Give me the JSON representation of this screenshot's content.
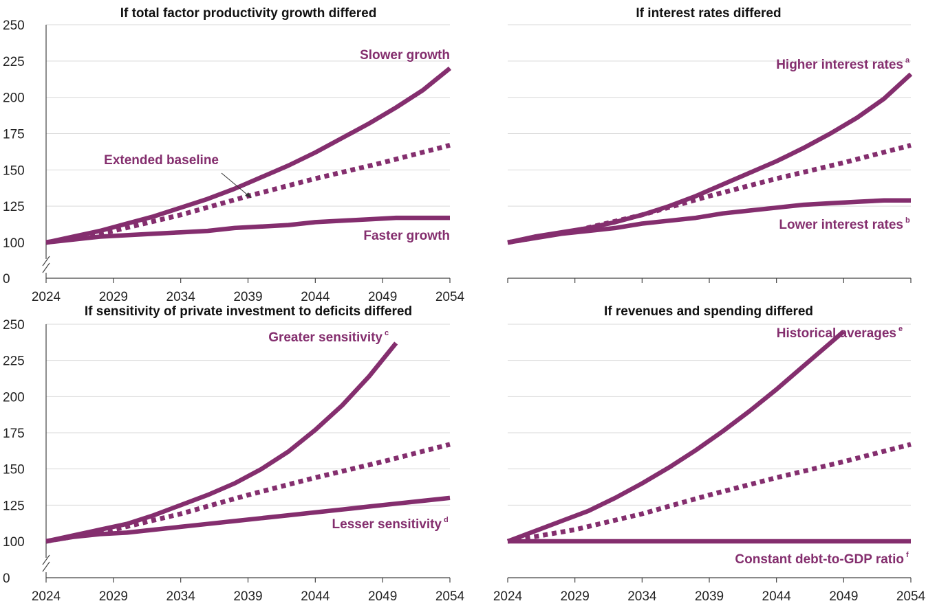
{
  "colors": {
    "series": "#842e6e",
    "grid": "#d9d9d9",
    "axis": "#444444"
  },
  "chart_data": [
    {
      "type": "line",
      "title": "If total factor productivity growth differed",
      "x_ticks": [
        "2024",
        "2029",
        "2034",
        "2039",
        "2044",
        "2049",
        "2054"
      ],
      "y_ticks": [
        "250",
        "225",
        "200",
        "175",
        "150",
        "125",
        "100",
        "0"
      ],
      "ylim": [
        100,
        250
      ],
      "axis_break": true,
      "grid": true,
      "series": [
        {
          "name": "Slower growth",
          "style": "solid",
          "x": [
            2024,
            2026,
            2028,
            2030,
            2032,
            2034,
            2036,
            2038,
            2040,
            2042,
            2044,
            2046,
            2048,
            2050,
            2052,
            2054
          ],
          "y": [
            100,
            104,
            108,
            113,
            118,
            124,
            130,
            137,
            145,
            153,
            162,
            172,
            182,
            193,
            205,
            220
          ]
        },
        {
          "name": "Extended baseline",
          "style": "dotted",
          "x": [
            2024,
            2029,
            2034,
            2039,
            2044,
            2049,
            2054
          ],
          "y": [
            100,
            108,
            119,
            132,
            144,
            155,
            167
          ]
        },
        {
          "name": "Faster growth",
          "style": "solid",
          "x": [
            2024,
            2026,
            2028,
            2030,
            2032,
            2034,
            2036,
            2038,
            2040,
            2042,
            2044,
            2046,
            2048,
            2050,
            2052,
            2054
          ],
          "y": [
            100,
            102,
            104,
            105,
            106,
            107,
            108,
            110,
            111,
            112,
            114,
            115,
            116,
            117,
            117,
            117
          ]
        }
      ]
    },
    {
      "type": "line",
      "title": "If interest rates differed",
      "x_ticks": [],
      "y_ticks": [],
      "ylim": [
        100,
        250
      ],
      "axis_break": false,
      "grid": true,
      "series": [
        {
          "name": "Higher interest rates",
          "note": "a",
          "style": "solid",
          "x": [
            2024,
            2026,
            2028,
            2030,
            2032,
            2034,
            2036,
            2038,
            2040,
            2042,
            2044,
            2046,
            2048,
            2050,
            2052,
            2054
          ],
          "y": [
            100,
            104,
            107,
            110,
            114,
            119,
            125,
            132,
            140,
            148,
            156,
            165,
            175,
            186,
            199,
            216
          ]
        },
        {
          "name": "Extended baseline",
          "style": "dotted",
          "x": [
            2024,
            2029,
            2034,
            2039,
            2044,
            2049,
            2054
          ],
          "y": [
            100,
            108,
            119,
            132,
            144,
            155,
            167
          ]
        },
        {
          "name": "Lower interest rates",
          "note": "b",
          "style": "solid",
          "x": [
            2024,
            2026,
            2028,
            2030,
            2032,
            2034,
            2036,
            2038,
            2040,
            2042,
            2044,
            2046,
            2048,
            2050,
            2052,
            2054
          ],
          "y": [
            100,
            103,
            106,
            108,
            110,
            113,
            115,
            117,
            120,
            122,
            124,
            126,
            127,
            128,
            129,
            129
          ]
        }
      ]
    },
    {
      "type": "line",
      "title": "If sensitivity of private investment to deficits differed",
      "x_ticks": [
        "2024",
        "2029",
        "2034",
        "2039",
        "2044",
        "2049",
        "2054"
      ],
      "y_ticks": [
        "250",
        "225",
        "200",
        "175",
        "150",
        "125",
        "100",
        "0"
      ],
      "ylim": [
        100,
        250
      ],
      "axis_break": true,
      "grid": true,
      "series": [
        {
          "name": "Greater sensitivity",
          "note": "c",
          "style": "solid",
          "x": [
            2024,
            2026,
            2028,
            2030,
            2032,
            2034,
            2036,
            2038,
            2040,
            2042,
            2044,
            2046,
            2048,
            2050
          ],
          "y": [
            100,
            104,
            108,
            112,
            118,
            125,
            132,
            140,
            150,
            162,
            177,
            194,
            214,
            237
          ]
        },
        {
          "name": "Extended baseline",
          "style": "dotted",
          "x": [
            2024,
            2029,
            2034,
            2039,
            2044,
            2049,
            2054
          ],
          "y": [
            100,
            108,
            119,
            132,
            144,
            155,
            167
          ]
        },
        {
          "name": "Lesser sensitivity",
          "note": "d",
          "style": "solid",
          "x": [
            2024,
            2026,
            2028,
            2030,
            2032,
            2034,
            2036,
            2038,
            2040,
            2042,
            2044,
            2046,
            2048,
            2050,
            2052,
            2054
          ],
          "y": [
            100,
            103,
            105,
            106,
            108,
            110,
            112,
            114,
            116,
            118,
            120,
            122,
            124,
            126,
            128,
            130
          ]
        }
      ]
    },
    {
      "type": "line",
      "title": "If revenues and spending differed",
      "x_ticks": [
        "2024",
        "2029",
        "2034",
        "2039",
        "2044",
        "2049",
        "2054"
      ],
      "y_ticks": [],
      "ylim": [
        100,
        250
      ],
      "axis_break": false,
      "grid": true,
      "series": [
        {
          "name": "Historical averages",
          "note": "e",
          "style": "solid",
          "x": [
            2024,
            2026,
            2028,
            2030,
            2032,
            2034,
            2036,
            2038,
            2040,
            2042,
            2044,
            2046,
            2048,
            2049
          ],
          "y": [
            100,
            107,
            114,
            121,
            130,
            140,
            151,
            163,
            176,
            190,
            205,
            221,
            237,
            245
          ]
        },
        {
          "name": "Extended baseline",
          "style": "dotted",
          "x": [
            2024,
            2029,
            2034,
            2039,
            2044,
            2049,
            2054
          ],
          "y": [
            100,
            108,
            119,
            132,
            144,
            155,
            167
          ]
        },
        {
          "name": "Constant debt-to-GDP ratio",
          "note": "f",
          "style": "solid",
          "x": [
            2024,
            2054
          ],
          "y": [
            100,
            100
          ]
        }
      ]
    }
  ]
}
